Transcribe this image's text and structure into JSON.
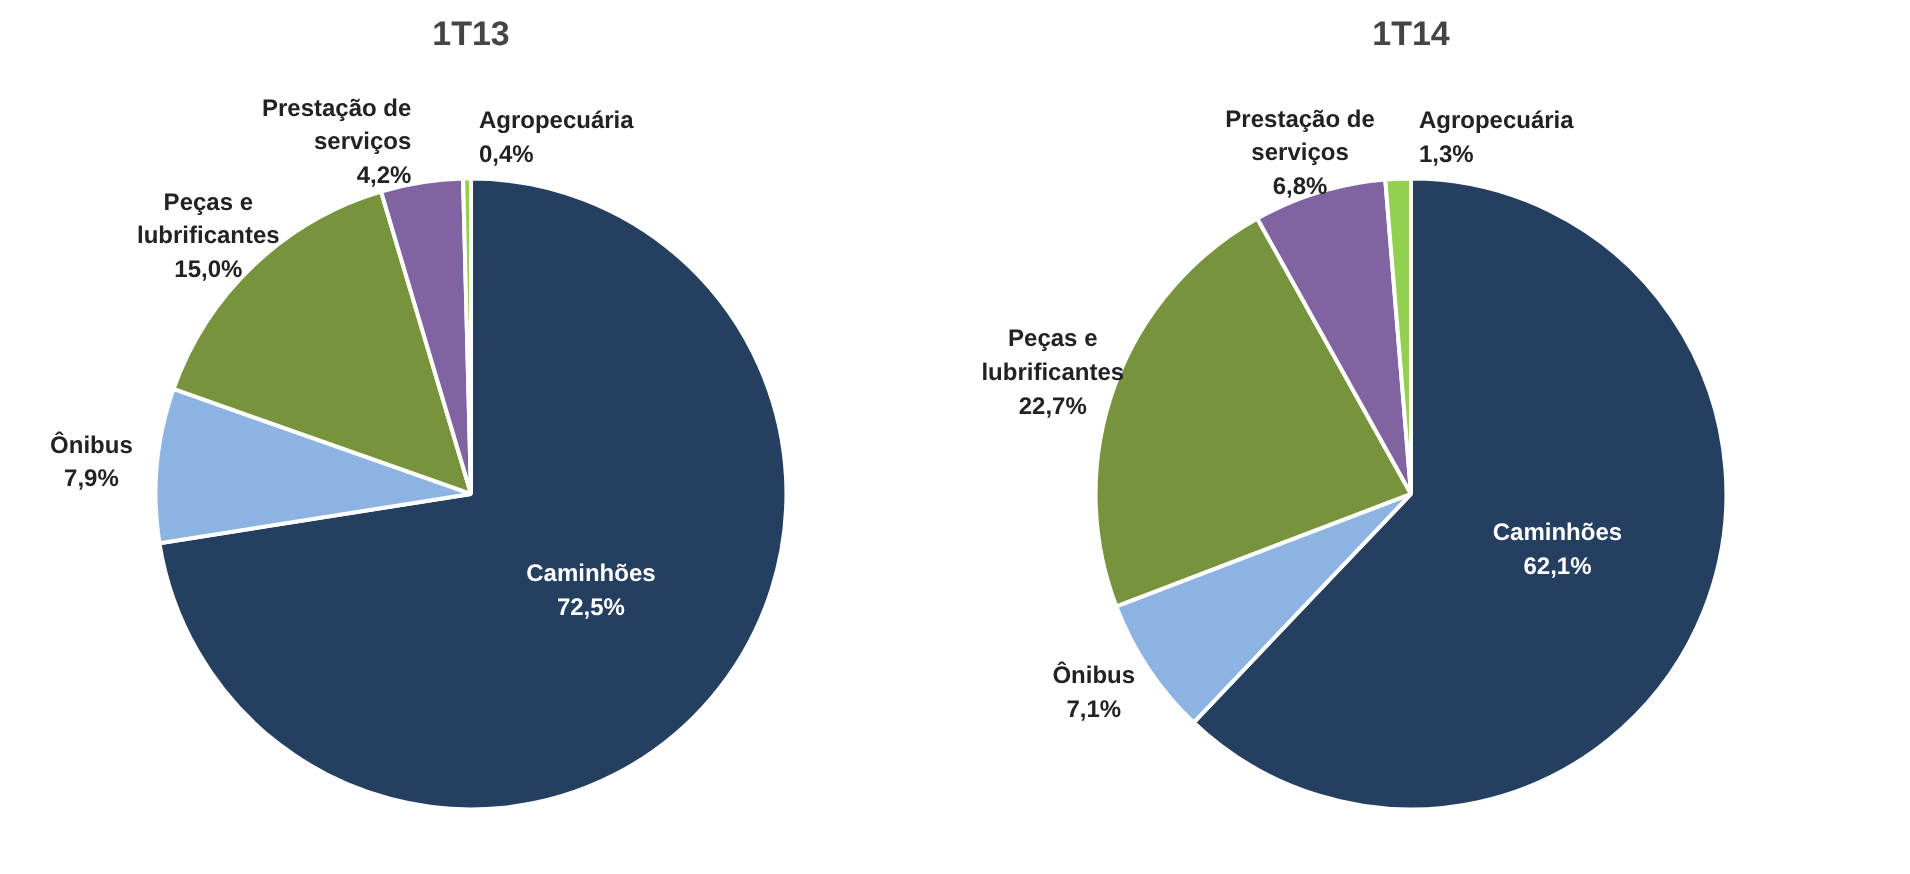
{
  "chart_data": [
    {
      "type": "pie",
      "title": "1T13",
      "categories": [
        "Caminhões",
        "Ônibus",
        "Peças e lubrificantes",
        "Prestação de serviços",
        "Agropecuária"
      ],
      "values": [
        72.5,
        7.9,
        15.0,
        4.2,
        0.4
      ],
      "value_labels": [
        "72,5%",
        "7,9%",
        "15,0%",
        "4,2%",
        "0,4%"
      ],
      "colors": [
        "#243f60",
        "#8db3e2",
        "#77933c",
        "#8064a2",
        "#92d050"
      ]
    },
    {
      "type": "pie",
      "title": "1T14",
      "categories": [
        "Caminhões",
        "Ônibus",
        "Peças e lubrificantes",
        "Prestação de serviços",
        "Agropecuária"
      ],
      "values": [
        62.1,
        7.1,
        22.7,
        6.8,
        1.3
      ],
      "value_labels": [
        "62,1%",
        "7,1%",
        "22,7%",
        "6,8%",
        "1,3%"
      ],
      "colors": [
        "#243f60",
        "#8db3e2",
        "#77933c",
        "#8064a2",
        "#92d050"
      ]
    }
  ]
}
